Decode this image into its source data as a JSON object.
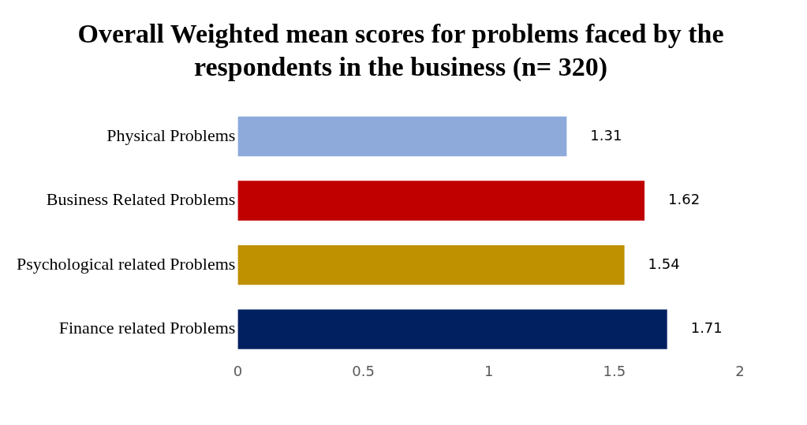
{
  "chart_data": {
    "type": "bar",
    "orientation": "horizontal",
    "title": "Overall Weighted mean scores for problems faced by the respondents in the business (n= 320)",
    "categories": [
      "Physical Problems",
      "Business Related Problems",
      "Psychological related Problems",
      "Finance related Problems"
    ],
    "values": [
      1.31,
      1.62,
      1.54,
      1.71
    ],
    "colors": [
      "#8eaadb",
      "#c00000",
      "#bf9000",
      "#002060"
    ],
    "xlim": [
      0,
      2
    ],
    "xticks": [
      0,
      0.5,
      1,
      1.5,
      2
    ],
    "grid": false,
    "legend": false,
    "data_labels": true
  }
}
